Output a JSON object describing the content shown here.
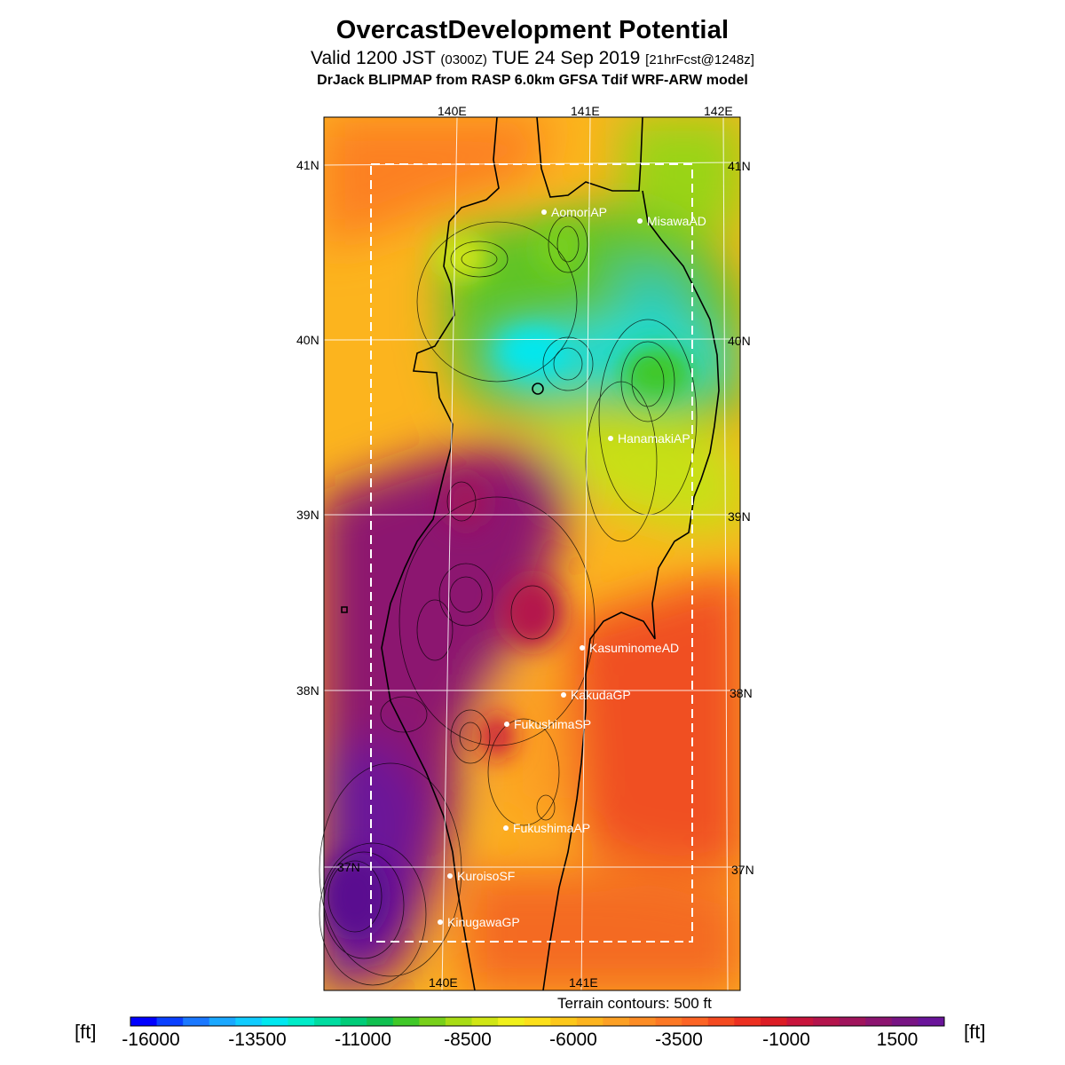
{
  "header": {
    "title": "OvercastDevelopment Potential",
    "valid_prefix": "Valid 1200 JST",
    "valid_utc": "(0300Z)",
    "valid_date": "TUE 24 Sep 2019",
    "forecast": "[21hrFcst@1248z]",
    "model": "DrJack BLIPMAP from RASP 6.0km GFSA Tdif WRF-ARW model"
  },
  "map": {
    "lon_labels_top": [
      "140E",
      "141E",
      "142E"
    ],
    "lon_labels_bottom": [
      "140E",
      "141E"
    ],
    "lat_labels_left": [
      "41N",
      "40N",
      "39N",
      "38N"
    ],
    "lat_labels_right": [
      "41N",
      "40N",
      "39N",
      "38N",
      "37N"
    ],
    "lat_label_inside": "37N",
    "stations": [
      {
        "name": "AomoriAP"
      },
      {
        "name": "MisawaAD"
      },
      {
        "name": "HanamakiAP"
      },
      {
        "name": "KasuminomeAD"
      },
      {
        "name": "KakudaGP"
      },
      {
        "name": "FukushimaSP"
      },
      {
        "name": "FukushimaAP"
      },
      {
        "name": "KuroisoSF"
      },
      {
        "name": "KinugawaGP"
      }
    ],
    "terrain_note": "Terrain contours: 500 ft"
  },
  "colorbar": {
    "unit": "[ft]",
    "tick_labels": [
      "-16000",
      "-13500",
      "-11000",
      "-8500",
      "-6000",
      "-3500",
      "-1000",
      "1500"
    ],
    "colors": [
      "#0000ff",
      "#0a40ff",
      "#1a78ff",
      "#1aa8ff",
      "#10ccff",
      "#00e8f0",
      "#00ecc8",
      "#00dca0",
      "#00cc78",
      "#10c050",
      "#40c828",
      "#78d01a",
      "#a8dc14",
      "#d0e614",
      "#f0f01a",
      "#fce01a",
      "#fcc81a",
      "#fcb41e",
      "#fca024",
      "#fc8c24",
      "#fc7824",
      "#fc6424",
      "#f44a20",
      "#ec3020",
      "#dc1c24",
      "#c8143c",
      "#b4144c",
      "#a0145c",
      "#8c1470",
      "#781484",
      "#6a149a"
    ]
  }
}
